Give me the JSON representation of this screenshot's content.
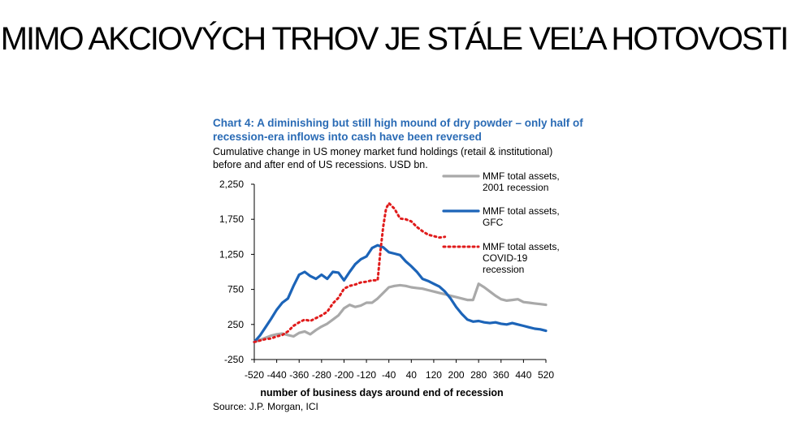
{
  "slide": {
    "title": "MIMO AKCIOVÝCH TRHOV JE STÁLE VEĽA HOTOVOSTI"
  },
  "colors": {
    "gray": "#a9a9a9",
    "blue": "#1c64b8",
    "red": "#e01b1b",
    "title_blue": "#2a6bb5"
  },
  "chart_data": {
    "type": "line",
    "title_line1": "Chart 4: A diminishing but still high mound of dry powder – only half of",
    "title_line2": "recession-era inflows into cash have been reversed",
    "subtitle_line1": "Cumulative change in US money market fund holdings (retail & institutional)",
    "subtitle_line2": "before and after end of US recessions. USD bn.",
    "xlabel": "number of business days around end of recession",
    "ylabel": "",
    "source": "Source: J.P. Morgan, ICI",
    "xlim": [
      -520,
      520
    ],
    "ylim": [
      -250,
      2250
    ],
    "x_ticks": [
      "-520",
      "-440",
      "-360",
      "-280",
      "-200",
      "-120",
      "-40",
      "40",
      "120",
      "200",
      "280",
      "360",
      "440",
      "520"
    ],
    "y_ticks": [
      "2,250",
      "1,750",
      "1,250",
      "750",
      "250",
      "-250"
    ],
    "legend": [
      {
        "label_line1": "MMF total assets,",
        "label_line2": "2001 recession",
        "label_line3": ""
      },
      {
        "label_line1": "MMF total assets,",
        "label_line2": "GFC",
        "label_line3": ""
      },
      {
        "label_line1": "MMF total assets,",
        "label_line2": "COVID-19",
        "label_line3": "recession"
      }
    ],
    "series": [
      {
        "name": "MMF total assets, 2001 recession",
        "style": "solid-gray",
        "x": [
          -520,
          -500,
          -480,
          -460,
          -440,
          -420,
          -400,
          -380,
          -360,
          -340,
          -320,
          -300,
          -280,
          -260,
          -240,
          -220,
          -200,
          -180,
          -160,
          -140,
          -120,
          -100,
          -80,
          -60,
          -40,
          -20,
          0,
          20,
          40,
          60,
          80,
          100,
          120,
          140,
          160,
          180,
          200,
          220,
          240,
          260,
          280,
          300,
          320,
          340,
          360,
          380,
          400,
          420,
          440,
          460,
          480,
          500,
          520
        ],
        "y": [
          0,
          30,
          60,
          90,
          110,
          120,
          100,
          80,
          130,
          150,
          110,
          170,
          220,
          260,
          320,
          380,
          480,
          530,
          500,
          520,
          560,
          560,
          620,
          700,
          780,
          800,
          810,
          800,
          780,
          770,
          760,
          740,
          720,
          700,
          680,
          660,
          640,
          620,
          600,
          600,
          830,
          780,
          720,
          660,
          610,
          590,
          600,
          610,
          570,
          560,
          550,
          540,
          530
        ]
      },
      {
        "name": "MMF total assets, GFC",
        "style": "solid-blue",
        "x": [
          -520,
          -500,
          -480,
          -460,
          -440,
          -420,
          -400,
          -380,
          -360,
          -340,
          -320,
          -300,
          -280,
          -260,
          -240,
          -220,
          -200,
          -180,
          -160,
          -140,
          -120,
          -100,
          -80,
          -60,
          -40,
          -20,
          0,
          20,
          40,
          60,
          80,
          100,
          120,
          140,
          160,
          180,
          200,
          220,
          240,
          260,
          280,
          300,
          320,
          340,
          360,
          380,
          400,
          420,
          440,
          460,
          480,
          500,
          520
        ],
        "y": [
          0,
          90,
          210,
          330,
          460,
          560,
          620,
          800,
          960,
          1000,
          940,
          900,
          960,
          900,
          1000,
          990,
          880,
          1000,
          1110,
          1180,
          1220,
          1340,
          1380,
          1350,
          1280,
          1260,
          1240,
          1150,
          1080,
          1000,
          900,
          870,
          830,
          790,
          720,
          620,
          500,
          400,
          320,
          290,
          300,
          280,
          270,
          280,
          260,
          250,
          270,
          250,
          230,
          210,
          190,
          180,
          160
        ]
      },
      {
        "name": "MMF total assets, COVID-19 recession",
        "style": "dotted-red",
        "x": [
          -520,
          -500,
          -480,
          -460,
          -440,
          -420,
          -400,
          -380,
          -360,
          -340,
          -320,
          -300,
          -280,
          -260,
          -240,
          -220,
          -200,
          -180,
          -160,
          -140,
          -120,
          -100,
          -80,
          -70,
          -60,
          -50,
          -40,
          -30,
          -20,
          0,
          20,
          40,
          60,
          80,
          100,
          120,
          140,
          160
        ],
        "y": [
          0,
          20,
          40,
          50,
          80,
          100,
          150,
          230,
          280,
          320,
          300,
          340,
          380,
          430,
          550,
          630,
          760,
          800,
          820,
          850,
          860,
          880,
          880,
          1300,
          1650,
          1900,
          1980,
          1940,
          1900,
          1760,
          1750,
          1720,
          1640,
          1580,
          1530,
          1510,
          1490,
          1500
        ]
      }
    ]
  }
}
